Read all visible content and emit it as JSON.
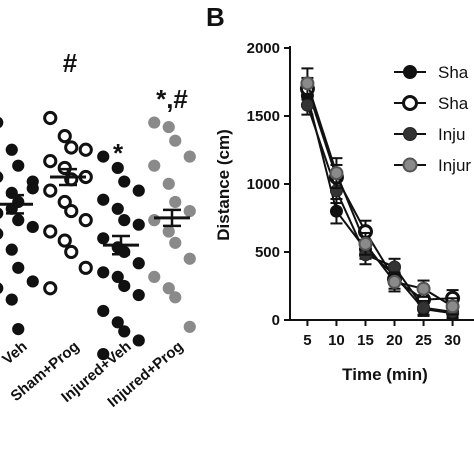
{
  "panel_b_label": "B",
  "colors": {
    "black": "#111111",
    "gray": "#8a8a8a",
    "white": "#ffffff"
  },
  "chart_data": [
    {
      "type": "scatter",
      "title": "",
      "categories": [
        "Sham+Veh",
        "Sham+Prog",
        "Injured+Veh",
        "Injured+Prog"
      ],
      "category_labels": [
        "Veh",
        "Sham+Prog",
        "Injured+Veh",
        "Injured+Prog"
      ],
      "annotations": [
        "",
        "#",
        "*",
        "*,#"
      ],
      "group_means": [
        0.62,
        0.74,
        0.44,
        0.56
      ],
      "group_sems": [
        0.04,
        0.035,
        0.04,
        0.035
      ],
      "points": [
        [
          0.98,
          0.86,
          0.79,
          0.72,
          0.74,
          0.67,
          0.63,
          0.69,
          0.58,
          0.6,
          0.55,
          0.52,
          0.49,
          0.42,
          0.34,
          0.28,
          0.25,
          0.2,
          0.07
        ],
        [
          1.0,
          0.92,
          0.87,
          0.86,
          0.81,
          0.78,
          0.73,
          0.74,
          0.68,
          0.63,
          0.59,
          0.55,
          0.5,
          0.46,
          0.41,
          0.34,
          0.25
        ],
        [
          0.83,
          0.78,
          0.72,
          0.68,
          0.64,
          0.6,
          0.55,
          0.53,
          0.47,
          0.43,
          0.41,
          0.36,
          0.32,
          0.3,
          0.26,
          0.22,
          0.15,
          0.1,
          0.06,
          0.02,
          -0.04
        ],
        [
          0.98,
          0.96,
          0.9,
          0.83,
          0.79,
          0.71,
          0.63,
          0.59,
          0.55,
          0.5,
          0.45,
          0.38,
          0.3,
          0.25,
          0.21,
          0.08
        ]
      ],
      "styles": [
        "black",
        "open",
        "black",
        "gray"
      ]
    },
    {
      "type": "line",
      "title": "",
      "xlabel": "Time (min)",
      "ylabel": "Distance (cm)",
      "x": [
        5,
        10,
        15,
        20,
        25,
        30
      ],
      "xlim": [
        2,
        33
      ],
      "ylim": [
        0,
        2000
      ],
      "xticks": [
        "5",
        "10",
        "15",
        "20",
        "25",
        "30"
      ],
      "yticks": [
        "0",
        "500",
        "1000",
        "1500",
        "2000"
      ],
      "legend_position": "right",
      "series": [
        {
          "name": "Sha",
          "style": "black",
          "values": [
            1650,
            800,
            520,
            330,
            80,
            50
          ],
          "err": [
            80,
            90,
            70,
            60,
            50,
            40
          ]
        },
        {
          "name": "Sha",
          "style": "open",
          "values": [
            1700,
            1050,
            650,
            300,
            150,
            160
          ],
          "err": [
            80,
            90,
            80,
            70,
            60,
            60
          ]
        },
        {
          "name": "Inju",
          "style": "dark",
          "values": [
            1580,
            950,
            480,
            390,
            90,
            60
          ],
          "err": [
            70,
            90,
            70,
            60,
            50,
            40
          ]
        },
        {
          "name": "Injur",
          "style": "gray",
          "values": [
            1740,
            1080,
            560,
            280,
            230,
            100
          ],
          "err": [
            110,
            110,
            80,
            70,
            60,
            60
          ]
        }
      ]
    }
  ]
}
